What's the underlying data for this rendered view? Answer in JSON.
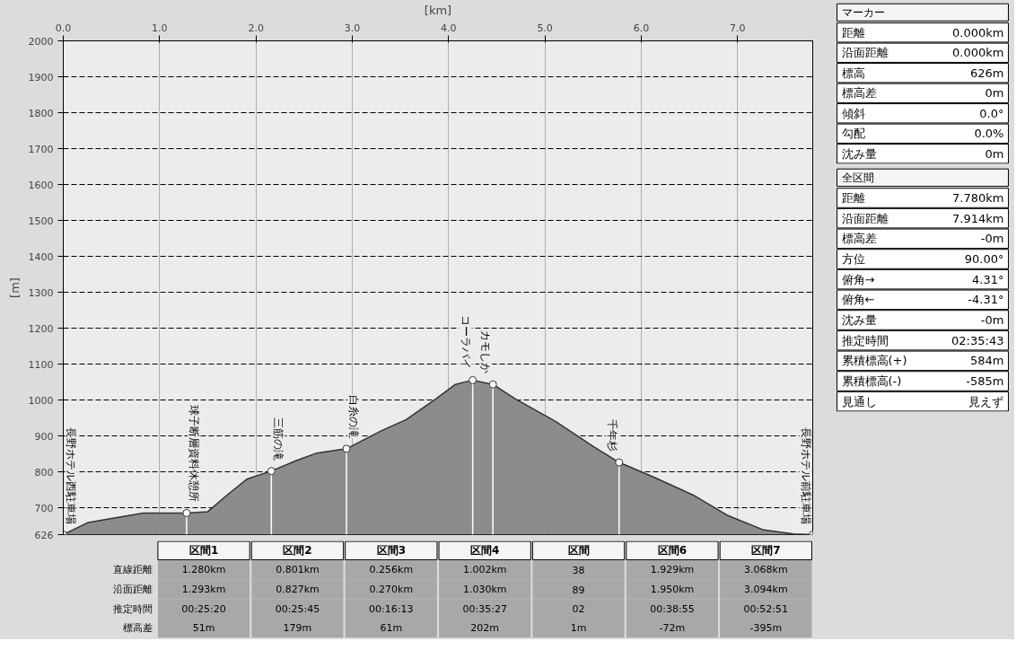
{
  "chart_data": [
    {
      "type": "area",
      "xlabel": "[km]",
      "ylabel": "[m]",
      "x": [
        0,
        0.26,
        0.57,
        0.83,
        1.28,
        1.5,
        1.7,
        1.91,
        2.16,
        2.42,
        2.63,
        2.94,
        3.3,
        3.56,
        3.87,
        4.07,
        4.25,
        4.46,
        4.69,
        5.11,
        5.51,
        5.77,
        6.13,
        6.54,
        6.9,
        7.26,
        7.58,
        7.78
      ],
      "series": [
        {
          "color": "#8c8c8c",
          "values": [
            626,
            660,
            674,
            686,
            686,
            690,
            736,
            781,
            803,
            832,
            853,
            865,
            915,
            946,
            1004,
            1044,
            1056,
            1044,
            1004,
            941,
            870,
            827,
            786,
            736,
            679,
            640,
            628,
            626
          ]
        }
      ],
      "xlim": [
        0,
        7.78
      ],
      "ylim": [
        626,
        2000
      ],
      "xticks": [
        {
          "value": 0,
          "label": "0.0"
        },
        {
          "value": 1,
          "label": "1.0"
        },
        {
          "value": 2,
          "label": "2.0"
        },
        {
          "value": 3,
          "label": "3.0"
        },
        {
          "value": 4,
          "label": "4.0"
        },
        {
          "value": 5,
          "label": "5.0"
        },
        {
          "value": 6,
          "label": "6.0"
        },
        {
          "value": 7,
          "label": "7.0"
        }
      ],
      "yticks": [
        626,
        700,
        800,
        900,
        1000,
        1100,
        1200,
        1300,
        1400,
        1500,
        1600,
        1700,
        1800,
        1900,
        2000
      ],
      "grid": true,
      "annotations": [
        {
          "text": "長野ホテル西駐車場",
          "x": 0,
          "y": 626
        },
        {
          "text": "球子断層資料休憩所",
          "x": 1.28,
          "y": 686
        },
        {
          "text": "三筋の滝",
          "x": 2.16,
          "y": 803
        },
        {
          "text": "白糸の滝",
          "x": 2.94,
          "y": 865
        },
        {
          "text": "コーラパイ",
          "x": 4.25,
          "y": 1056
        },
        {
          "text": "カモしか",
          "x": 4.46,
          "y": 1044
        },
        {
          "text": "千年杉",
          "x": 5.77,
          "y": 827
        },
        {
          "text": "長野ホテル前駐車場",
          "x": 7.78,
          "y": 626
        }
      ]
    },
    {
      "type": "other",
      "categories": [
        "区間1",
        "区間2",
        "区間3",
        "区間4",
        "区間",
        "区間6",
        "区間7"
      ],
      "y_categories": [
        "直線距離",
        "沿面距離",
        "推定時間",
        "標高差"
      ],
      "cell_labels": [
        [
          "1.280km",
          "0.801km",
          "0.256km",
          "1.002km",
          "38",
          "1.929km",
          "3.068km"
        ],
        [
          "1.293km",
          "0.827km",
          "0.270km",
          "1.030km",
          "89",
          "1.950km",
          "3.094km"
        ],
        [
          "00:25:20",
          "00:25:45",
          "00:16:13",
          "00:35:27",
          "02",
          "00:38:55",
          "00:52:51"
        ],
        [
          "51m",
          "179m",
          "61m",
          "202m",
          "1m",
          "-72m",
          "-395m"
        ]
      ]
    },
    {
      "type": "other",
      "title": "マーカー",
      "y_categories": [
        "距離",
        "沿面距離",
        "標高",
        "標高差",
        "傾斜",
        "勾配",
        "沈み量"
      ],
      "cell_labels": [
        [
          "0.000km"
        ],
        [
          "0.000km"
        ],
        [
          "626m"
        ],
        [
          "0m"
        ],
        [
          "0.0°"
        ],
        [
          "0.0%"
        ],
        [
          "0m"
        ]
      ]
    },
    {
      "type": "other",
      "title": "全区間",
      "y_categories": [
        "距離",
        "沿面距離",
        "標高差",
        "方位",
        "俯角→",
        "俯角←",
        "沈み量",
        "推定時間",
        "累積標高(+)",
        "累積標高(-)",
        "見通し"
      ],
      "cell_labels": [
        [
          "7.780km"
        ],
        [
          "7.914km"
        ],
        [
          "-0m"
        ],
        [
          "90.00°"
        ],
        [
          "4.31°"
        ],
        [
          "-4.31°"
        ],
        [
          "-0m"
        ],
        [
          "02:35:43"
        ],
        [
          "584m"
        ],
        [
          "-585m"
        ],
        [
          "見えず"
        ]
      ]
    }
  ]
}
